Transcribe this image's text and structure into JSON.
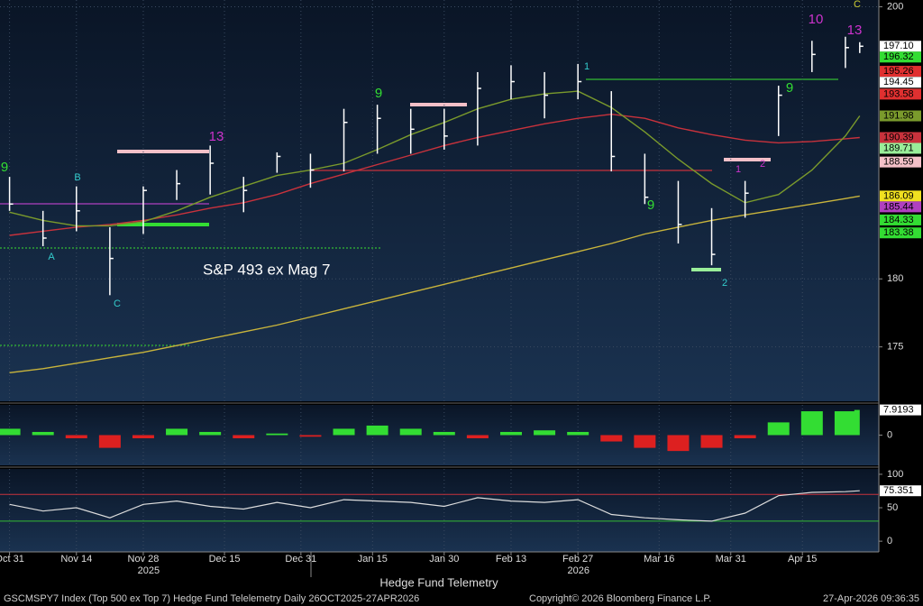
{
  "chart_data": {
    "type": "hlc",
    "title": "Hedge Fund Telemetry",
    "annotation": "S&P 493 ex Mag 7",
    "footer": {
      "security": "GSCMSPY7 Index (Top 500 ex Top 7) Hedge Fund Telelemetry Daily 26OCT2025-27APR2026",
      "copyright": "Copyright© 2026 Bloomberg Finance L.P.",
      "timestamp": "27-Apr-2026 09:36:35"
    },
    "years": [
      {
        "value": "2025-12-01",
        "label": "2025"
      },
      {
        "value": "2026-03-01",
        "label": "2026"
      }
    ],
    "x": [
      "2025-10-31",
      "2025-11-07",
      "2025-11-14",
      "2025-11-21",
      "2025-11-28",
      "2025-12-05",
      "2025-12-12",
      "2025-12-19",
      "2025-12-26",
      "2026-01-02",
      "2026-01-09",
      "2026-01-16",
      "2026-01-23",
      "2026-01-30",
      "2026-02-06",
      "2026-02-13",
      "2026-02-20",
      "2026-02-27",
      "2026-03-06",
      "2026-03-13",
      "2026-03-20",
      "2026-03-27",
      "2026-04-03",
      "2026-04-10",
      "2026-04-17",
      "2026-04-24",
      "2026-04-27"
    ],
    "high": [
      187.5,
      185.0,
      186.8,
      183.8,
      186.8,
      188.0,
      189.8,
      187.5,
      189.3,
      189.2,
      192.5,
      192.8,
      192.5,
      192.5,
      195.2,
      195.7,
      195.2,
      195.8,
      193.8,
      189.2,
      187.2,
      185.2,
      187.2,
      194.2,
      197.5,
      197.8,
      197.4
    ],
    "low": [
      185.0,
      182.4,
      183.5,
      178.8,
      183.3,
      185.8,
      186.2,
      184.9,
      187.8,
      186.7,
      187.9,
      189.2,
      189.2,
      189.5,
      189.8,
      193.2,
      191.8,
      193.2,
      187.9,
      185.5,
      182.6,
      181.0,
      184.5,
      190.5,
      195.2,
      195.5,
      196.6
    ],
    "close": [
      185.5,
      183.0,
      185.0,
      181.5,
      186.5,
      187.0,
      188.5,
      186.5,
      189.0,
      188.0,
      191.5,
      191.8,
      191.0,
      190.5,
      194.0,
      194.5,
      193.5,
      194.5,
      189.0,
      186.0,
      184.0,
      181.8,
      186.3,
      193.5,
      196.5,
      197.0,
      197.1
    ],
    "bar_color": "#ffffff",
    "lines": [
      {
        "color": "#c8b43c",
        "values": [
          173.1,
          173.4,
          173.8,
          174.2,
          174.6,
          175.1,
          175.6,
          176.1,
          176.6,
          177.2,
          177.8,
          178.4,
          179.0,
          179.6,
          180.2,
          180.8,
          181.4,
          182.0,
          182.6,
          183.3,
          183.8,
          184.3,
          184.7,
          185.1,
          185.5,
          185.9,
          186.09
        ]
      },
      {
        "color": "#c8323c",
        "values": [
          183.2,
          183.5,
          183.8,
          184.0,
          184.3,
          184.7,
          185.2,
          185.6,
          186.2,
          187.0,
          187.7,
          188.4,
          189.1,
          189.8,
          190.4,
          190.9,
          191.4,
          191.8,
          192.1,
          191.8,
          191.1,
          190.6,
          190.2,
          190.0,
          190.1,
          190.3,
          190.39
        ]
      },
      {
        "color": "#7a9a2c",
        "values": [
          184.9,
          184.3,
          183.9,
          183.9,
          184.2,
          185.0,
          186.0,
          186.8,
          187.6,
          188.0,
          188.5,
          189.5,
          190.6,
          191.5,
          192.5,
          193.2,
          193.6,
          193.8,
          192.6,
          190.8,
          188.8,
          187.0,
          185.6,
          186.2,
          188.0,
          190.5,
          191.98
        ]
      }
    ],
    "xlim": [
      "2025-10-29",
      "2026-05-01"
    ],
    "xticks": [
      {
        "value": "2025-10-31",
        "label": "Oct 31"
      },
      {
        "value": "2025-11-14",
        "label": "Nov 14"
      },
      {
        "value": "2025-11-28",
        "label": "Nov 28"
      },
      {
        "value": "2025-12-15",
        "label": "Dec 15"
      },
      {
        "value": "2025-12-31",
        "label": "Dec 31"
      },
      {
        "value": "2026-01-15",
        "label": "Jan 15"
      },
      {
        "value": "2026-01-30",
        "label": "Jan 30"
      },
      {
        "value": "2026-02-13",
        "label": "Feb 13"
      },
      {
        "value": "2026-02-27",
        "label": "Feb 27"
      },
      {
        "value": "2026-03-16",
        "label": "Mar 16"
      },
      {
        "value": "2026-03-31",
        "label": "Mar 31"
      },
      {
        "value": "2026-04-15",
        "label": "Apr 15"
      }
    ],
    "ylim": [
      171,
      200.5
    ],
    "yticks": [
      175,
      180,
      200
    ],
    "grid": true,
    "price_labels": [
      {
        "value": 197.1,
        "label": "197.10",
        "color": "#ffffff"
      },
      {
        "value": 196.32,
        "label": "196.32",
        "color": "#33dd33"
      },
      {
        "value": 195.26,
        "label": "195.26",
        "color": "#e03030"
      },
      {
        "value": 194.45,
        "label": "194.45",
        "color": "#ffffff"
      },
      {
        "value": 193.58,
        "label": "193.58",
        "color": "#e03030"
      },
      {
        "value": 191.98,
        "label": "191.98",
        "color": "#7a9a2c"
      },
      {
        "value": 190.39,
        "label": "190.39",
        "color": "#c8323c"
      },
      {
        "value": 189.71,
        "label": "189.71",
        "color": "#99ee99"
      },
      {
        "value": 188.59,
        "label": "188.59",
        "color": "#f4c0c8"
      },
      {
        "value": 186.09,
        "label": "186.09",
        "color": "#f0e020"
      },
      {
        "value": 185.44,
        "label": "185.44",
        "color": "#b040c0"
      },
      {
        "value": 184.33,
        "label": "184.33",
        "color": "#33dd33"
      },
      {
        "value": 183.38,
        "label": "183.38",
        "color": "#33dd33"
      }
    ],
    "td_counts": [
      {
        "text": "9",
        "color": "#33dd33"
      },
      {
        "text": "13",
        "color": "#cc33cc"
      },
      {
        "text": "9",
        "color": "#33dd33"
      },
      {
        "text": "9",
        "color": "#33dd33"
      },
      {
        "text": "10",
        "color": "#cc33cc"
      },
      {
        "text": "13",
        "color": "#cc33cc"
      },
      {
        "text": "1",
        "color": "#33cccc"
      },
      {
        "text": "2",
        "color": "#33cccc"
      },
      {
        "text": "C",
        "color": "#33cccc"
      },
      {
        "text": "B",
        "color": "#33cccc"
      },
      {
        "text": "A",
        "color": "#33cccc"
      },
      {
        "text": "C",
        "color": "#cccc33"
      },
      {
        "text": "9",
        "color": "#33dd33"
      },
      {
        "text": "1",
        "color": "#cc33cc"
      },
      {
        "text": "2",
        "color": "#cc33cc"
      }
    ],
    "histogram": {
      "values": [
        2,
        1,
        -1,
        -4,
        -1,
        2,
        1,
        -1,
        0.5,
        -0.5,
        2,
        3,
        2,
        1,
        -1,
        1,
        1.5,
        1,
        -2,
        -4,
        -5,
        -4,
        -1,
        4,
        7.5,
        7.5,
        7.9193
      ],
      "last_label": {
        "value": 7.9193,
        "label": "7.9193"
      },
      "positive_color": "#33dd33",
      "negative_color": "#dd2020",
      "ylim": [
        -9.5,
        9.5
      ],
      "yticks": [
        0
      ]
    },
    "rsi": {
      "values": [
        55,
        45,
        50,
        35,
        55,
        60,
        52,
        48,
        58,
        50,
        62,
        60,
        58,
        52,
        65,
        60,
        58,
        62,
        40,
        35,
        32,
        30,
        42,
        68,
        73,
        74,
        75.351
      ],
      "last_label": {
        "value": 75.351,
        "label": "75.351"
      },
      "color": "#dddddd",
      "ylim": [
        -16,
        108
      ],
      "yticks": [
        0,
        50,
        100
      ],
      "overbought": 70,
      "oversold": 30,
      "overbought_color": "#c8323c",
      "oversold_color": "#33bb33"
    }
  }
}
